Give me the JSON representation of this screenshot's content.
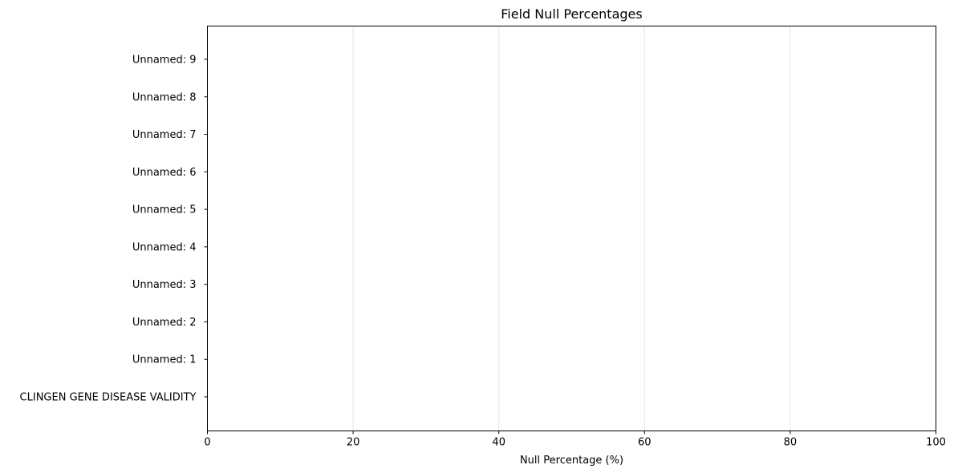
{
  "chart_data": {
    "type": "bar",
    "orientation": "horizontal",
    "title": "Field Null Percentages",
    "xlabel": "Null Percentage (%)",
    "ylabel": "",
    "xlim": [
      0,
      100
    ],
    "xticks": [
      0,
      20,
      40,
      60,
      80,
      100
    ],
    "categories": [
      "CLINGEN GENE DISEASE VALIDITY",
      "Unnamed: 1",
      "Unnamed: 2",
      "Unnamed: 3",
      "Unnamed: 4",
      "Unnamed: 5",
      "Unnamed: 6",
      "Unnamed: 7",
      "Unnamed: 8",
      "Unnamed: 9"
    ],
    "values": [
      0,
      0,
      0,
      0,
      0,
      0,
      0,
      0,
      0,
      0
    ],
    "grid": "vertical",
    "legend": "none",
    "colors": {
      "bar": "#1f77b4",
      "grid": "#e6e6e6",
      "axis": "#000000"
    }
  }
}
